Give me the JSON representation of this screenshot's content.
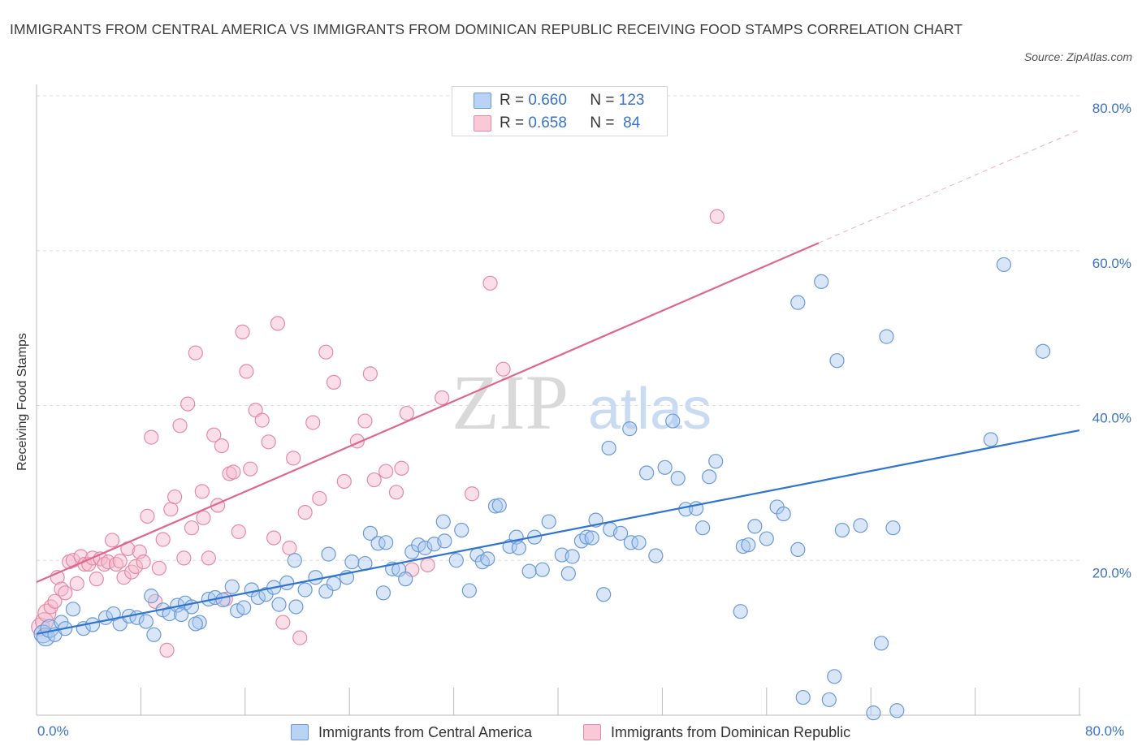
{
  "title": "IMMIGRANTS FROM CENTRAL AMERICA VS IMMIGRANTS FROM DOMINICAN REPUBLIC RECEIVING FOOD STAMPS CORRELATION CHART",
  "source": "Source: ZipAtlas.com",
  "watermark": "ZIPatlas",
  "legend": {
    "rows": [
      {
        "r_label": "R =",
        "r_value": "0.660",
        "n_label": "N =",
        "n_value": "123"
      },
      {
        "r_label": "R =",
        "r_value": "0.658",
        "n_label": "N =",
        "n_value": "84"
      }
    ]
  },
  "x_axis": {
    "min_label": "0.0%",
    "max_label": "80.0%"
  },
  "y_axis": {
    "label": "Receiving Food Stamps"
  },
  "colors": {
    "blue_fill": "#a8c8f0",
    "blue_stroke": "#6b9ad6",
    "blue_line": "#2f74d0",
    "pink_fill": "#f7b8cb",
    "pink_stroke": "#e58aa6",
    "pink_line": "#e06690",
    "grid": "#dddddd",
    "axis_text": "#3a73c7"
  },
  "chart_data": {
    "type": "scatter",
    "title": "IMMIGRANTS FROM CENTRAL AMERICA VS IMMIGRANTS FROM DOMINICAN REPUBLIC RECEIVING FOOD STAMPS CORRELATION CHART",
    "xlabel": "",
    "ylabel": "Receiving Food Stamps",
    "xlim": [
      0,
      80
    ],
    "ylim": [
      0,
      80
    ],
    "y_ticks": [
      "20.0%",
      "40.0%",
      "60.0%",
      "80.0%"
    ],
    "y_tick_values": [
      20,
      40,
      60,
      80
    ],
    "x_tick_values": [
      0,
      8,
      16,
      24,
      32,
      40,
      48,
      56,
      64,
      72,
      80
    ],
    "grid": true,
    "legend_position": "top-center",
    "series": [
      {
        "name": "Immigrants from Central America",
        "color": "#6b9ad6",
        "trend": {
          "x": [
            0,
            80
          ],
          "y": [
            10.5,
            36.8
          ],
          "dashed_from": null
        },
        "points": [
          [
            0.5,
            10.5
          ],
          [
            0.7,
            10.1
          ],
          [
            1.0,
            11.2
          ],
          [
            1.4,
            10.4
          ],
          [
            1.9,
            12.0
          ],
          [
            2.2,
            11.2
          ],
          [
            2.8,
            13.7
          ],
          [
            3.6,
            11.2
          ],
          [
            4.3,
            11.7
          ],
          [
            5.3,
            12.6
          ],
          [
            5.9,
            13.1
          ],
          [
            6.4,
            11.8
          ],
          [
            7.1,
            12.8
          ],
          [
            7.7,
            12.6
          ],
          [
            8.4,
            12.1
          ],
          [
            8.8,
            15.4
          ],
          [
            9.7,
            13.6
          ],
          [
            10.2,
            13.1
          ],
          [
            10.8,
            14.2
          ],
          [
            11.4,
            14.5
          ],
          [
            11.9,
            14.0
          ],
          [
            12.5,
            12.0
          ],
          [
            13.2,
            15.0
          ],
          [
            13.7,
            15.2
          ],
          [
            14.3,
            14.9
          ],
          [
            15.0,
            16.6
          ],
          [
            15.4,
            13.5
          ],
          [
            15.9,
            13.9
          ],
          [
            16.5,
            16.2
          ],
          [
            17.0,
            15.2
          ],
          [
            17.6,
            15.6
          ],
          [
            18.2,
            16.5
          ],
          [
            18.6,
            14.3
          ],
          [
            19.2,
            17.1
          ],
          [
            19.8,
            20.0
          ],
          [
            19.9,
            14.0
          ],
          [
            20.6,
            16.2
          ],
          [
            21.4,
            17.8
          ],
          [
            22.2,
            16.0
          ],
          [
            22.4,
            20.8
          ],
          [
            22.8,
            17.0
          ],
          [
            23.8,
            17.8
          ],
          [
            24.2,
            19.8
          ],
          [
            25.2,
            19.6
          ],
          [
            25.6,
            23.5
          ],
          [
            26.2,
            22.2
          ],
          [
            26.6,
            15.8
          ],
          [
            26.8,
            22.3
          ],
          [
            27.3,
            18.9
          ],
          [
            27.8,
            18.8
          ],
          [
            28.3,
            17.6
          ],
          [
            28.8,
            21.1
          ],
          [
            29.3,
            22.0
          ],
          [
            29.8,
            21.6
          ],
          [
            30.5,
            22.1
          ],
          [
            31.2,
            25.0
          ],
          [
            31.3,
            22.5
          ],
          [
            32.2,
            20.0
          ],
          [
            32.6,
            23.9
          ],
          [
            33.2,
            16.1
          ],
          [
            33.8,
            20.7
          ],
          [
            34.2,
            19.8
          ],
          [
            34.6,
            20.2
          ],
          [
            35.2,
            27.0
          ],
          [
            35.5,
            27.1
          ],
          [
            36.3,
            21.8
          ],
          [
            36.8,
            23.0
          ],
          [
            37.0,
            21.6
          ],
          [
            37.8,
            18.6
          ],
          [
            38.2,
            23.0
          ],
          [
            38.8,
            18.8
          ],
          [
            39.3,
            25.0
          ],
          [
            40.3,
            20.7
          ],
          [
            40.8,
            18.3
          ],
          [
            41.1,
            20.5
          ],
          [
            41.8,
            22.5
          ],
          [
            42.2,
            23.0
          ],
          [
            42.9,
            25.2
          ],
          [
            42.6,
            22.9
          ],
          [
            43.5,
            15.6
          ],
          [
            43.9,
            34.5
          ],
          [
            44.0,
            24.0
          ],
          [
            44.8,
            23.5
          ],
          [
            45.5,
            37.0
          ],
          [
            45.6,
            22.3
          ],
          [
            46.2,
            22.3
          ],
          [
            46.8,
            31.3
          ],
          [
            47.5,
            20.6
          ],
          [
            48.2,
            32.0
          ],
          [
            48.8,
            38.0
          ],
          [
            49.2,
            30.6
          ],
          [
            49.8,
            26.6
          ],
          [
            50.6,
            26.7
          ],
          [
            51.1,
            24.2
          ],
          [
            51.6,
            30.8
          ],
          [
            52.1,
            32.8
          ],
          [
            54.0,
            13.4
          ],
          [
            54.2,
            21.8
          ],
          [
            54.6,
            22.0
          ],
          [
            55.1,
            24.4
          ],
          [
            56.0,
            22.8
          ],
          [
            56.8,
            26.9
          ],
          [
            57.3,
            26.0
          ],
          [
            58.4,
            21.4
          ],
          [
            58.4,
            53.3
          ],
          [
            60.2,
            56.0
          ],
          [
            61.2,
            5.0
          ],
          [
            61.4,
            45.8
          ],
          [
            63.2,
            24.5
          ],
          [
            64.2,
            0.3
          ],
          [
            64.8,
            9.3
          ],
          [
            65.2,
            48.9
          ],
          [
            65.7,
            24.2
          ],
          [
            66.0,
            0.6
          ],
          [
            73.2,
            35.6
          ],
          [
            74.2,
            58.2
          ],
          [
            77.2,
            47.0
          ],
          [
            58.8,
            2.3
          ],
          [
            60.8,
            2.0
          ],
          [
            61.8,
            23.9
          ],
          [
            9.0,
            10.4
          ],
          [
            11.1,
            13.0
          ],
          [
            12.2,
            11.8
          ]
        ]
      },
      {
        "name": "Immigrants from Dominican Republic",
        "color": "#e58aa6",
        "trend": {
          "x": [
            0,
            80
          ],
          "y": [
            17.2,
            75.6
          ],
          "dashed_from": 60
        },
        "points": [
          [
            0.3,
            11.4
          ],
          [
            0.6,
            12.1
          ],
          [
            0.8,
            13.2
          ],
          [
            1.1,
            14.0
          ],
          [
            1.4,
            14.7
          ],
          [
            1.6,
            17.8
          ],
          [
            1.9,
            16.3
          ],
          [
            2.2,
            15.8
          ],
          [
            2.5,
            19.8
          ],
          [
            2.8,
            20.0
          ],
          [
            3.1,
            17.0
          ],
          [
            3.4,
            20.5
          ],
          [
            3.7,
            19.5
          ],
          [
            4.0,
            19.5
          ],
          [
            4.3,
            20.3
          ],
          [
            4.6,
            17.6
          ],
          [
            4.9,
            20.2
          ],
          [
            5.2,
            19.5
          ],
          [
            5.5,
            19.8
          ],
          [
            5.8,
            22.6
          ],
          [
            6.1,
            19.5
          ],
          [
            6.4,
            19.9
          ],
          [
            6.7,
            17.8
          ],
          [
            7.0,
            21.5
          ],
          [
            7.3,
            18.5
          ],
          [
            7.6,
            19.2
          ],
          [
            7.9,
            21.1
          ],
          [
            8.2,
            19.8
          ],
          [
            8.5,
            25.7
          ],
          [
            8.8,
            35.9
          ],
          [
            9.1,
            14.7
          ],
          [
            9.4,
            19.0
          ],
          [
            9.7,
            22.7
          ],
          [
            10.0,
            8.4
          ],
          [
            10.3,
            26.6
          ],
          [
            10.6,
            28.2
          ],
          [
            11.0,
            37.4
          ],
          [
            11.3,
            20.3
          ],
          [
            11.6,
            40.2
          ],
          [
            11.9,
            24.2
          ],
          [
            12.2,
            46.8
          ],
          [
            12.7,
            28.9
          ],
          [
            12.8,
            25.5
          ],
          [
            13.2,
            20.3
          ],
          [
            13.6,
            36.2
          ],
          [
            13.9,
            27.1
          ],
          [
            14.2,
            34.8
          ],
          [
            14.5,
            15.0
          ],
          [
            14.8,
            31.2
          ],
          [
            15.1,
            31.4
          ],
          [
            15.5,
            23.7
          ],
          [
            15.8,
            49.5
          ],
          [
            16.1,
            44.4
          ],
          [
            16.4,
            31.8
          ],
          [
            16.8,
            39.4
          ],
          [
            17.3,
            38.1
          ],
          [
            17.8,
            35.3
          ],
          [
            18.2,
            22.9
          ],
          [
            18.5,
            50.6
          ],
          [
            18.9,
            12.0
          ],
          [
            19.4,
            21.6
          ],
          [
            19.7,
            33.2
          ],
          [
            20.2,
            10.0
          ],
          [
            20.6,
            26.2
          ],
          [
            21.2,
            37.8
          ],
          [
            21.7,
            28.0
          ],
          [
            22.2,
            46.9
          ],
          [
            22.8,
            43.0
          ],
          [
            23.6,
            30.2
          ],
          [
            24.6,
            35.4
          ],
          [
            25.2,
            38.0
          ],
          [
            25.6,
            44.1
          ],
          [
            25.9,
            30.4
          ],
          [
            26.8,
            31.5
          ],
          [
            27.6,
            28.8
          ],
          [
            28.0,
            31.9
          ],
          [
            28.4,
            39.0
          ],
          [
            28.8,
            18.8
          ],
          [
            30.0,
            19.4
          ],
          [
            31.1,
            41.0
          ],
          [
            33.4,
            28.6
          ],
          [
            34.8,
            55.8
          ],
          [
            35.8,
            44.7
          ],
          [
            52.2,
            64.4
          ]
        ]
      }
    ]
  },
  "bottom_legend": [
    {
      "label": "Immigrants from Central America"
    },
    {
      "label": "Immigrants from Dominican Republic"
    }
  ]
}
